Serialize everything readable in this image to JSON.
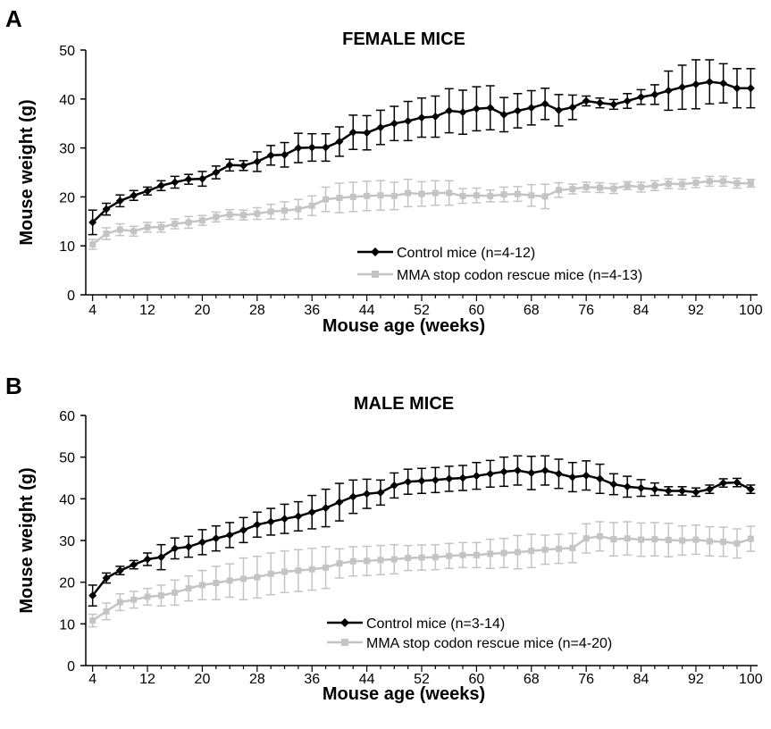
{
  "chart_data": [
    {
      "type": "line",
      "panel_label": "A",
      "title": "FEMALE MICE",
      "xlabel": "Mouse age (weeks)",
      "ylabel": "Mouse weight (g)",
      "xlim": [
        3,
        101
      ],
      "ylim": [
        0,
        50
      ],
      "xticks": [
        4,
        12,
        20,
        28,
        36,
        44,
        52,
        60,
        68,
        76,
        84,
        92,
        100
      ],
      "yticks": [
        0,
        10,
        20,
        30,
        40,
        50
      ],
      "grid": false,
      "legend_position": "lower-right",
      "series": [
        {
          "name": "Control mice (n=4-12)",
          "color": "#000000",
          "marker": "diamond",
          "x": [
            4,
            6,
            8,
            10,
            12,
            14,
            16,
            18,
            20,
            22,
            24,
            26,
            28,
            30,
            32,
            34,
            36,
            38,
            40,
            42,
            44,
            46,
            48,
            50,
            52,
            54,
            56,
            58,
            60,
            62,
            64,
            66,
            68,
            70,
            72,
            74,
            76,
            78,
            80,
            82,
            84,
            86,
            88,
            90,
            92,
            94,
            96,
            98,
            100
          ],
          "y": [
            14.8,
            17.5,
            19.2,
            20.3,
            21.2,
            22.3,
            23,
            23.6,
            23.7,
            25,
            26.5,
            26.4,
            27.2,
            28.5,
            28.6,
            30,
            30.1,
            30.1,
            31.3,
            33.2,
            33.1,
            34.2,
            35,
            35.5,
            36.2,
            36.4,
            37.6,
            37.3,
            38,
            38.2,
            36.8,
            37.6,
            38.2,
            39,
            37.7,
            38.3,
            39.6,
            39.2,
            38.9,
            39.6,
            40.4,
            40.9,
            41.7,
            42.4,
            43,
            43.5,
            43.2,
            42.2,
            42.2
          ],
          "err": [
            2.5,
            1.2,
            1.2,
            1,
            0.8,
            1,
            1.2,
            1,
            1.5,
            1.3,
            1.2,
            1,
            2,
            2,
            2.5,
            3,
            2.8,
            2.8,
            3,
            3.5,
            3.5,
            3.5,
            3.5,
            4,
            4,
            4.2,
            4.5,
            4.5,
            4.5,
            4.5,
            3.5,
            3.5,
            3.5,
            3.2,
            3.2,
            2.5,
            1,
            1,
            1,
            1.5,
            1.5,
            2,
            4,
            4.5,
            5,
            4.5,
            4,
            4,
            4
          ]
        },
        {
          "name": "MMA stop codon rescue mice (n=4-13)",
          "color": "#c4c4c4",
          "marker": "square",
          "x": [
            4,
            6,
            8,
            10,
            12,
            14,
            16,
            18,
            20,
            22,
            24,
            26,
            28,
            30,
            32,
            34,
            36,
            38,
            40,
            42,
            44,
            46,
            48,
            50,
            52,
            54,
            56,
            58,
            60,
            62,
            64,
            66,
            68,
            70,
            72,
            74,
            76,
            78,
            80,
            82,
            84,
            86,
            88,
            90,
            92,
            94,
            96,
            98,
            100
          ],
          "y": [
            10.3,
            12.5,
            13.3,
            13,
            13.8,
            13.8,
            14.5,
            14.8,
            15.2,
            15.9,
            16.4,
            16.3,
            16.6,
            17,
            17.2,
            17.5,
            18.2,
            19.5,
            19.8,
            20,
            20.2,
            20.3,
            20.2,
            20.8,
            20.6,
            20.8,
            20.8,
            20.2,
            20.3,
            20.2,
            20.5,
            20.6,
            20.3,
            20.1,
            21.4,
            21.6,
            22,
            21.9,
            21.7,
            22.3,
            22,
            22.3,
            22.7,
            22.6,
            22.9,
            23.2,
            23.2,
            22.8,
            22.8
          ],
          "err": [
            1,
            1.2,
            1.2,
            1,
            1,
            1,
            1,
            1.2,
            1,
            1,
            1,
            1,
            1.2,
            1.5,
            1.8,
            2,
            2,
            2.5,
            3,
            3,
            3,
            3,
            2.8,
            2.8,
            2.5,
            2.5,
            2.5,
            1.5,
            1.5,
            1.2,
            1.5,
            1.5,
            2.2,
            2.5,
            1.5,
            1,
            1,
            1,
            1,
            0.8,
            1,
            1,
            1,
            1,
            1,
            1,
            1,
            1,
            0.8
          ]
        }
      ]
    },
    {
      "type": "line",
      "panel_label": "B",
      "title": "MALE MICE",
      "xlabel": "Mouse age (weeks)",
      "ylabel": "Mouse weight (g)",
      "xlim": [
        3,
        101
      ],
      "ylim": [
        0,
        60
      ],
      "xticks": [
        4,
        12,
        20,
        28,
        36,
        44,
        52,
        60,
        68,
        76,
        84,
        92,
        100
      ],
      "yticks": [
        0,
        10,
        20,
        30,
        40,
        50,
        60
      ],
      "grid": false,
      "legend_position": "lower-right",
      "series": [
        {
          "name": "Control mice (n=3-14)",
          "color": "#000000",
          "marker": "diamond",
          "x": [
            4,
            6,
            8,
            10,
            12,
            14,
            16,
            18,
            20,
            22,
            24,
            26,
            28,
            30,
            32,
            34,
            36,
            38,
            40,
            42,
            44,
            46,
            48,
            50,
            52,
            54,
            56,
            58,
            60,
            62,
            64,
            66,
            68,
            70,
            72,
            74,
            76,
            78,
            80,
            82,
            84,
            86,
            88,
            90,
            92,
            94,
            96,
            98,
            100
          ],
          "y": [
            16.8,
            21,
            22.8,
            24.2,
            25.5,
            26,
            28.1,
            28.5,
            29.6,
            30.5,
            31.3,
            32.5,
            33.8,
            34.5,
            35.2,
            35.8,
            36.8,
            37.8,
            39.2,
            40.5,
            41.2,
            41.5,
            43.2,
            44.1,
            44.3,
            44.5,
            44.8,
            45,
            45.5,
            46,
            46.5,
            46.8,
            46.2,
            46.8,
            46,
            45.2,
            45.6,
            44.8,
            43.5,
            42.9,
            42.6,
            42.3,
            41.9,
            41.9,
            41.6,
            42.3,
            43.8,
            43.9,
            42.3
          ],
          "err": [
            2.5,
            1.2,
            1,
            1,
            1.5,
            3,
            2.5,
            2.5,
            3,
            3,
            3,
            3,
            3,
            3.2,
            3.5,
            3.5,
            4,
            4.5,
            4.5,
            4,
            3.5,
            3,
            3,
            3,
            3,
            3,
            3,
            3,
            3.2,
            3.2,
            3.5,
            3.5,
            4,
            3.5,
            3.5,
            3.5,
            3.5,
            3.5,
            2.5,
            2.5,
            2,
            1.5,
            1,
            1,
            1,
            1,
            1,
            1,
            1
          ]
        },
        {
          "name": "MMA stop codon rescue mice (n=4-20)",
          "color": "#c4c4c4",
          "marker": "square",
          "x": [
            4,
            6,
            8,
            10,
            12,
            14,
            16,
            18,
            20,
            22,
            24,
            26,
            28,
            30,
            32,
            34,
            36,
            38,
            40,
            42,
            44,
            46,
            48,
            50,
            52,
            54,
            56,
            58,
            60,
            62,
            64,
            66,
            68,
            70,
            72,
            74,
            76,
            78,
            80,
            82,
            84,
            86,
            88,
            90,
            92,
            94,
            96,
            98,
            100
          ],
          "y": [
            10.8,
            13,
            15.2,
            15.8,
            16.5,
            16.8,
            17.5,
            18.5,
            19.3,
            19.8,
            20.4,
            20.8,
            21.2,
            22,
            22.5,
            22.8,
            23.1,
            23.5,
            24.5,
            25,
            25.1,
            25.3,
            25.5,
            25.8,
            25.9,
            26,
            26.3,
            26.5,
            26.5,
            26.8,
            27,
            27.2,
            27.5,
            27.8,
            28,
            28.2,
            30.5,
            31,
            30.3,
            30.5,
            30.2,
            30.3,
            30.1,
            30,
            30.2,
            29.8,
            29.7,
            29.3,
            30.4
          ],
          "err": [
            1.5,
            2,
            2,
            2,
            2,
            2.5,
            3,
            3,
            3.5,
            4,
            4,
            5,
            5,
            5,
            5,
            5,
            5,
            5,
            3.5,
            3.5,
            3.5,
            3.5,
            3.5,
            3,
            3,
            3,
            3,
            3,
            3,
            3.5,
            3.5,
            4,
            4,
            3.5,
            3.5,
            3.5,
            3.5,
            3.5,
            4,
            4,
            4,
            4,
            4,
            3.5,
            3.5,
            3.5,
            3.5,
            3.5,
            3
          ]
        }
      ]
    }
  ]
}
